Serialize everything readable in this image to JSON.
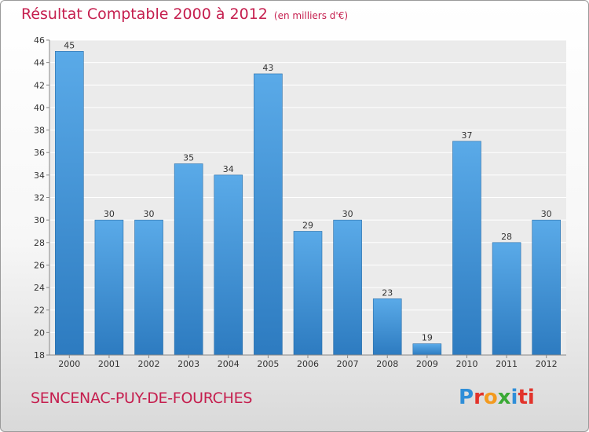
{
  "chart_data": {
    "type": "bar",
    "title": "Résultat Comptable 2000 à 2012",
    "subtitle": "(en milliers d'€)",
    "categories": [
      "2000",
      "2001",
      "2002",
      "2003",
      "2004",
      "2005",
      "2006",
      "2007",
      "2008",
      "2009",
      "2010",
      "2011",
      "2012"
    ],
    "values": [
      45,
      30,
      30,
      35,
      34,
      43,
      29,
      30,
      23,
      19,
      37,
      28,
      30
    ],
    "ylim": [
      18,
      46
    ],
    "yticks": [
      18,
      20,
      22,
      24,
      26,
      28,
      30,
      32,
      34,
      36,
      38,
      40,
      42,
      44,
      46
    ],
    "grid": true,
    "xlabel": "",
    "ylabel": "",
    "bar_color": "#4c9fe0",
    "bar_color_dark": "#2a78bd"
  },
  "footer": {
    "town": "SENCENAC-PUY-DE-FOURCHES",
    "logo": [
      "P",
      "r",
      "o",
      "x",
      "i",
      "ti"
    ]
  },
  "colors": {
    "title": "#c51e4e"
  }
}
